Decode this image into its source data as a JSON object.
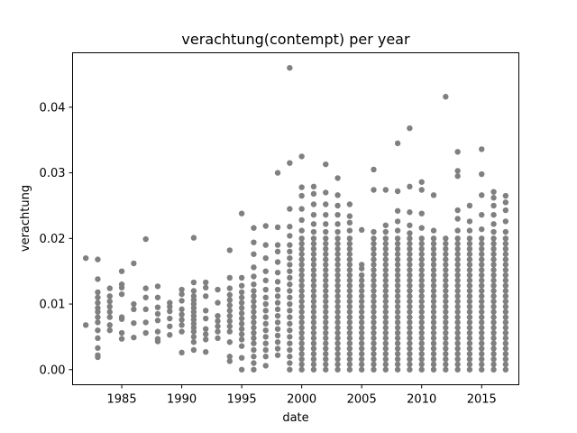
{
  "chart_data": {
    "type": "scatter",
    "title": "verachtung(contempt) per year",
    "xlabel": "date",
    "ylabel": "verachtung",
    "xlim": [
      1980.9,
      2018.1
    ],
    "ylim": [
      -0.0023,
      0.0483
    ],
    "xticks": [
      1985,
      1990,
      1995,
      2000,
      2005,
      2010,
      2015
    ],
    "yticks": [
      0.0,
      0.01,
      0.02,
      0.03,
      0.04
    ],
    "ytick_labels": [
      "0.00",
      "0.01",
      "0.02",
      "0.03",
      "0.04"
    ],
    "grid": false,
    "point_color": "#808080",
    "points_by_year": [
      {
        "year": 1982,
        "values": [
          0.0068,
          0.017
        ]
      },
      {
        "year": 1983,
        "values": [
          0.0019,
          0.0022,
          0.0033,
          0.0048,
          0.006,
          0.0072,
          0.008,
          0.0088,
          0.0094,
          0.0102,
          0.011,
          0.0118,
          0.0138,
          0.0168
        ]
      },
      {
        "year": 1984,
        "values": [
          0.006,
          0.0068,
          0.008,
          0.0088,
          0.0096,
          0.0104,
          0.0112,
          0.0124
        ]
      },
      {
        "year": 1985,
        "values": [
          0.0047,
          0.0056,
          0.0077,
          0.008,
          0.0115,
          0.0125,
          0.013,
          0.015
        ]
      },
      {
        "year": 1986,
        "values": [
          0.0049,
          0.0071,
          0.0092,
          0.01,
          0.0162
        ]
      },
      {
        "year": 1987,
        "values": [
          0.0056,
          0.0072,
          0.0092,
          0.011,
          0.0124,
          0.0199
        ]
      },
      {
        "year": 1988,
        "values": [
          0.0043,
          0.0047,
          0.0058,
          0.0075,
          0.0085,
          0.0095,
          0.011,
          0.0127
        ]
      },
      {
        "year": 1989,
        "values": [
          0.0053,
          0.0066,
          0.0078,
          0.0089,
          0.0096,
          0.0102
        ]
      },
      {
        "year": 1990,
        "values": [
          0.0026,
          0.0058,
          0.0068,
          0.0076,
          0.0084,
          0.0092,
          0.0105,
          0.0115,
          0.0122
        ]
      },
      {
        "year": 1991,
        "values": [
          0.003,
          0.0042,
          0.005,
          0.0058,
          0.0064,
          0.007,
          0.0076,
          0.0082,
          0.0088,
          0.0094,
          0.01,
          0.0106,
          0.0112,
          0.012,
          0.0133,
          0.0201
        ]
      },
      {
        "year": 1992,
        "values": [
          0.0027,
          0.0046,
          0.0054,
          0.0062,
          0.0078,
          0.009,
          0.0112,
          0.0125,
          0.0133
        ]
      },
      {
        "year": 1993,
        "values": [
          0.0048,
          0.0058,
          0.0066,
          0.0074,
          0.0082,
          0.0102,
          0.0122
        ]
      },
      {
        "year": 1994,
        "values": [
          0.0013,
          0.002,
          0.0042,
          0.0058,
          0.0066,
          0.0074,
          0.0082,
          0.009,
          0.0098,
          0.0106,
          0.0114,
          0.0124,
          0.014,
          0.0182
        ]
      },
      {
        "year": 1995,
        "values": [
          0.0,
          0.0018,
          0.0036,
          0.0046,
          0.0054,
          0.0062,
          0.007,
          0.0078,
          0.0086,
          0.0094,
          0.0102,
          0.011,
          0.0118,
          0.0128,
          0.014,
          0.0238
        ]
      },
      {
        "year": 1996,
        "values": [
          0.0,
          0.001,
          0.002,
          0.003,
          0.004,
          0.0048,
          0.0056,
          0.0064,
          0.0072,
          0.008,
          0.0088,
          0.0096,
          0.0104,
          0.0112,
          0.012,
          0.013,
          0.0142,
          0.0156,
          0.0176,
          0.0194,
          0.0216
        ]
      },
      {
        "year": 1997,
        "values": [
          0.0006,
          0.002,
          0.003,
          0.004,
          0.005,
          0.006,
          0.007,
          0.008,
          0.009,
          0.01,
          0.011,
          0.0122,
          0.0136,
          0.015,
          0.017,
          0.019,
          0.0219
        ]
      },
      {
        "year": 1998,
        "values": [
          0.0022,
          0.0032,
          0.0042,
          0.0052,
          0.0062,
          0.0072,
          0.0082,
          0.0092,
          0.0102,
          0.0112,
          0.0122,
          0.0134,
          0.0148,
          0.0164,
          0.018,
          0.019,
          0.0217,
          0.03
        ]
      },
      {
        "year": 1999,
        "values": [
          0.0,
          0.001,
          0.002,
          0.003,
          0.004,
          0.005,
          0.006,
          0.007,
          0.008,
          0.009,
          0.01,
          0.011,
          0.012,
          0.013,
          0.014,
          0.015,
          0.016,
          0.017,
          0.018,
          0.019,
          0.0204,
          0.0218,
          0.0245,
          0.0315,
          0.046
        ]
      },
      {
        "year": 2000,
        "values": [
          0.0,
          0.0008,
          0.0016,
          0.0024,
          0.0032,
          0.004,
          0.0048,
          0.0056,
          0.0064,
          0.0072,
          0.008,
          0.0088,
          0.0096,
          0.0104,
          0.0112,
          0.012,
          0.0128,
          0.0136,
          0.0144,
          0.0152,
          0.016,
          0.0168,
          0.0176,
          0.0184,
          0.0192,
          0.02,
          0.0212,
          0.0228,
          0.0245,
          0.0265,
          0.0278,
          0.0325
        ]
      },
      {
        "year": 2001,
        "values": [
          0.0,
          0.0008,
          0.0016,
          0.0024,
          0.0032,
          0.004,
          0.0048,
          0.0056,
          0.0064,
          0.0072,
          0.008,
          0.0088,
          0.0096,
          0.0104,
          0.0112,
          0.012,
          0.0128,
          0.0136,
          0.0144,
          0.0152,
          0.016,
          0.0168,
          0.0176,
          0.0184,
          0.0192,
          0.02,
          0.021,
          0.0222,
          0.0236,
          0.0252,
          0.0268,
          0.0279
        ]
      },
      {
        "year": 2002,
        "values": [
          0.0,
          0.0008,
          0.0016,
          0.0024,
          0.0032,
          0.004,
          0.0048,
          0.0056,
          0.0064,
          0.0072,
          0.008,
          0.0088,
          0.0096,
          0.0104,
          0.0112,
          0.012,
          0.0128,
          0.0136,
          0.0144,
          0.0152,
          0.016,
          0.0168,
          0.0176,
          0.0184,
          0.0192,
          0.02,
          0.021,
          0.0222,
          0.0236,
          0.0252,
          0.027,
          0.0313
        ]
      },
      {
        "year": 2003,
        "values": [
          0.0,
          0.0008,
          0.0016,
          0.0024,
          0.0032,
          0.004,
          0.0048,
          0.0056,
          0.0064,
          0.0072,
          0.008,
          0.0088,
          0.0096,
          0.0104,
          0.0112,
          0.012,
          0.0128,
          0.0136,
          0.0144,
          0.0152,
          0.016,
          0.0168,
          0.0176,
          0.0184,
          0.0192,
          0.02,
          0.021,
          0.0222,
          0.0236,
          0.025,
          0.0266,
          0.0292
        ]
      },
      {
        "year": 2004,
        "values": [
          0.0,
          0.0008,
          0.0016,
          0.0024,
          0.0032,
          0.004,
          0.0048,
          0.0056,
          0.0064,
          0.0072,
          0.008,
          0.0088,
          0.0096,
          0.0104,
          0.0112,
          0.012,
          0.0128,
          0.0136,
          0.0144,
          0.0152,
          0.016,
          0.0168,
          0.0176,
          0.0184,
          0.0192,
          0.02,
          0.0212,
          0.0224,
          0.0234,
          0.0252
        ]
      },
      {
        "year": 2005,
        "values": [
          0.0,
          0.0008,
          0.0016,
          0.0024,
          0.0032,
          0.004,
          0.0048,
          0.0056,
          0.0064,
          0.0072,
          0.008,
          0.0088,
          0.0096,
          0.0104,
          0.0112,
          0.012,
          0.0128,
          0.0136,
          0.0144,
          0.0154,
          0.016,
          0.0213
        ]
      },
      {
        "year": 2006,
        "values": [
          0.0,
          0.0008,
          0.0016,
          0.0024,
          0.0032,
          0.004,
          0.0048,
          0.0056,
          0.0064,
          0.0072,
          0.008,
          0.0088,
          0.0096,
          0.0104,
          0.0112,
          0.012,
          0.0128,
          0.0136,
          0.0144,
          0.0152,
          0.016,
          0.0168,
          0.0176,
          0.0184,
          0.0192,
          0.02,
          0.021,
          0.0274,
          0.0305
        ]
      },
      {
        "year": 2007,
        "values": [
          0.0,
          0.0008,
          0.0016,
          0.0024,
          0.0032,
          0.004,
          0.0048,
          0.0056,
          0.0064,
          0.0072,
          0.008,
          0.0088,
          0.0096,
          0.0104,
          0.0112,
          0.012,
          0.0128,
          0.0136,
          0.0144,
          0.0152,
          0.016,
          0.0168,
          0.0176,
          0.0184,
          0.0192,
          0.02,
          0.021,
          0.022,
          0.0274
        ]
      },
      {
        "year": 2008,
        "values": [
          0.0,
          0.0008,
          0.0016,
          0.0024,
          0.0032,
          0.004,
          0.0048,
          0.0056,
          0.0064,
          0.0072,
          0.008,
          0.0088,
          0.0096,
          0.0104,
          0.0112,
          0.012,
          0.0128,
          0.0136,
          0.0144,
          0.0152,
          0.016,
          0.0168,
          0.0176,
          0.0184,
          0.0192,
          0.02,
          0.0212,
          0.0226,
          0.0242,
          0.0272,
          0.0345
        ]
      },
      {
        "year": 2009,
        "values": [
          0.0,
          0.0008,
          0.0016,
          0.0024,
          0.0032,
          0.004,
          0.0048,
          0.0056,
          0.0064,
          0.0072,
          0.008,
          0.0088,
          0.0096,
          0.0104,
          0.0112,
          0.012,
          0.0128,
          0.0136,
          0.0144,
          0.0152,
          0.016,
          0.0168,
          0.0176,
          0.0184,
          0.0192,
          0.02,
          0.0208,
          0.022,
          0.024,
          0.0279,
          0.0368
        ]
      },
      {
        "year": 2010,
        "values": [
          0.0,
          0.0008,
          0.0016,
          0.0024,
          0.0032,
          0.004,
          0.0048,
          0.0056,
          0.0064,
          0.0072,
          0.008,
          0.0088,
          0.0096,
          0.0104,
          0.0112,
          0.012,
          0.0128,
          0.0136,
          0.0144,
          0.0152,
          0.016,
          0.0168,
          0.0176,
          0.0184,
          0.0192,
          0.02,
          0.0216,
          0.0238,
          0.0274,
          0.0286
        ]
      },
      {
        "year": 2011,
        "values": [
          0.0,
          0.0008,
          0.0016,
          0.0024,
          0.0032,
          0.004,
          0.0048,
          0.0056,
          0.0064,
          0.0072,
          0.008,
          0.0088,
          0.0096,
          0.0104,
          0.0112,
          0.012,
          0.0128,
          0.0136,
          0.0144,
          0.0152,
          0.016,
          0.0168,
          0.0176,
          0.0184,
          0.0192,
          0.02,
          0.0212,
          0.0266
        ]
      },
      {
        "year": 2012,
        "values": [
          0.0,
          0.0008,
          0.0016,
          0.0024,
          0.0032,
          0.004,
          0.0048,
          0.0056,
          0.0064,
          0.0072,
          0.008,
          0.0088,
          0.0096,
          0.0104,
          0.0112,
          0.012,
          0.0128,
          0.0136,
          0.0144,
          0.0152,
          0.016,
          0.0168,
          0.0176,
          0.0184,
          0.0192,
          0.02,
          0.0416
        ]
      },
      {
        "year": 2013,
        "values": [
          0.0,
          0.0008,
          0.0016,
          0.0024,
          0.0032,
          0.004,
          0.0048,
          0.0056,
          0.0064,
          0.0072,
          0.008,
          0.0088,
          0.0096,
          0.0104,
          0.0112,
          0.012,
          0.0128,
          0.0136,
          0.0144,
          0.0152,
          0.016,
          0.0168,
          0.0176,
          0.0184,
          0.0192,
          0.02,
          0.0212,
          0.023,
          0.0243,
          0.0295,
          0.0303,
          0.0332
        ]
      },
      {
        "year": 2014,
        "values": [
          0.0,
          0.0008,
          0.0016,
          0.0024,
          0.0032,
          0.004,
          0.0048,
          0.0056,
          0.0064,
          0.0072,
          0.008,
          0.0088,
          0.0096,
          0.0104,
          0.0112,
          0.012,
          0.0128,
          0.0136,
          0.0144,
          0.0152,
          0.016,
          0.0168,
          0.0176,
          0.0184,
          0.0192,
          0.02,
          0.0212,
          0.0226,
          0.025
        ]
      },
      {
        "year": 2015,
        "values": [
          0.0,
          0.0008,
          0.0016,
          0.0024,
          0.0032,
          0.004,
          0.0048,
          0.0056,
          0.0064,
          0.0072,
          0.008,
          0.0088,
          0.0096,
          0.0104,
          0.0112,
          0.012,
          0.0128,
          0.0136,
          0.0144,
          0.0152,
          0.016,
          0.0168,
          0.0176,
          0.0184,
          0.0192,
          0.02,
          0.0214,
          0.0236,
          0.0266,
          0.0298,
          0.0336
        ]
      },
      {
        "year": 2016,
        "values": [
          0.0,
          0.0008,
          0.0016,
          0.0024,
          0.0032,
          0.004,
          0.0048,
          0.0056,
          0.0064,
          0.0072,
          0.008,
          0.0088,
          0.0096,
          0.0104,
          0.0112,
          0.012,
          0.0128,
          0.0136,
          0.0144,
          0.0152,
          0.016,
          0.0168,
          0.0176,
          0.0184,
          0.0192,
          0.02,
          0.021,
          0.0222,
          0.0236,
          0.025,
          0.0262,
          0.0271
        ]
      },
      {
        "year": 2017,
        "values": [
          0.0,
          0.0008,
          0.0016,
          0.0024,
          0.0032,
          0.004,
          0.0048,
          0.0056,
          0.0064,
          0.0072,
          0.008,
          0.0088,
          0.0096,
          0.0104,
          0.0112,
          0.012,
          0.0128,
          0.0136,
          0.0144,
          0.0152,
          0.016,
          0.0168,
          0.0176,
          0.0184,
          0.0192,
          0.02,
          0.021,
          0.0226,
          0.0243,
          0.0255,
          0.0265
        ]
      }
    ]
  }
}
